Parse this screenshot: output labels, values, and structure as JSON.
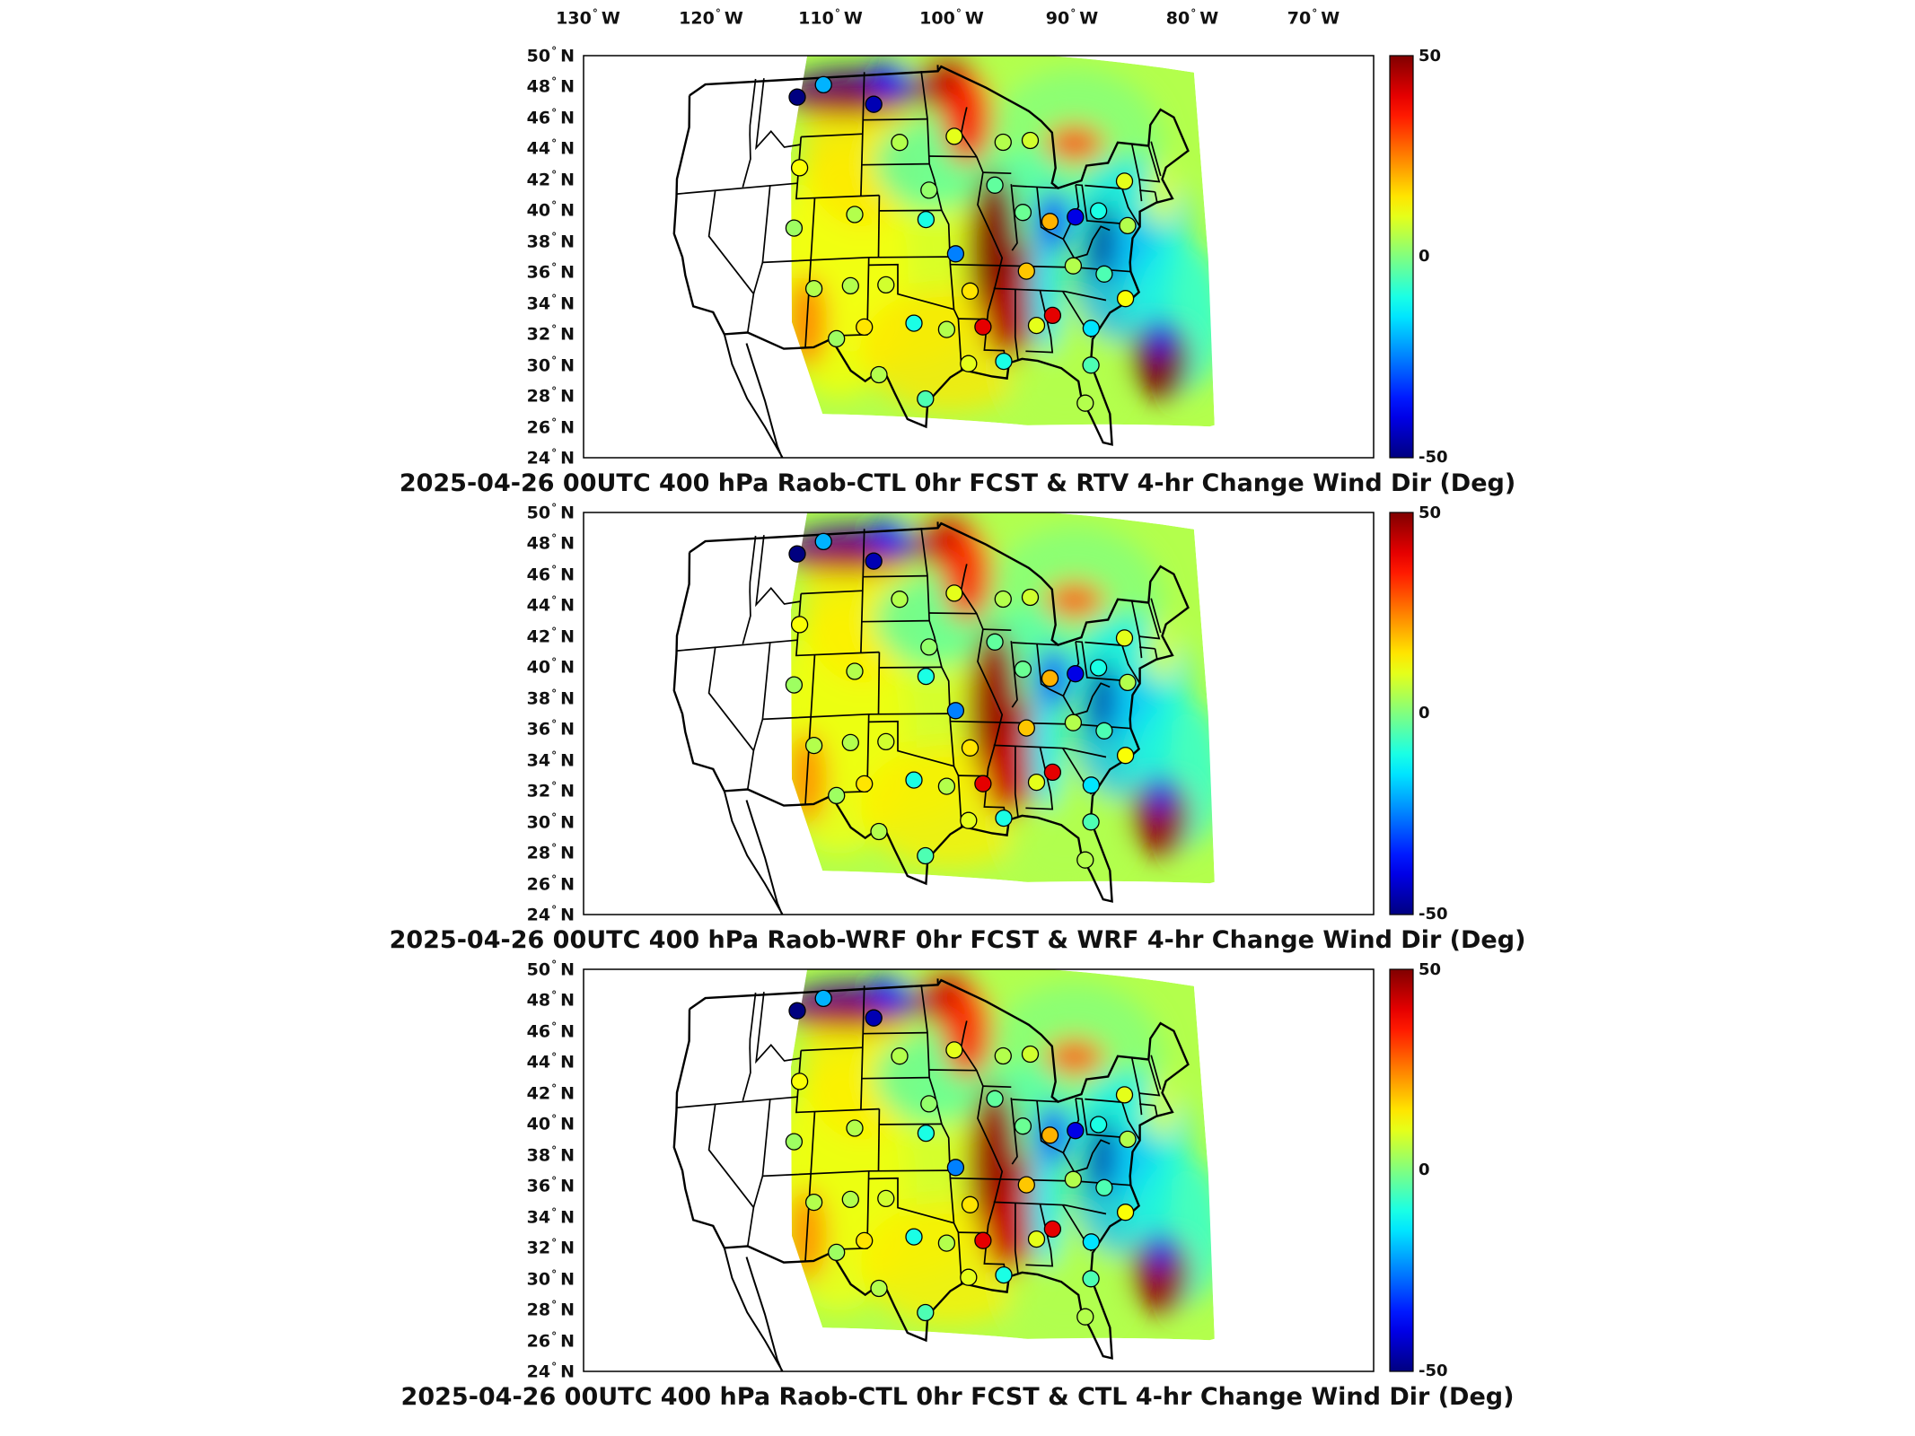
{
  "figure": {
    "longitude_labels": [
      {
        "deg": "130",
        "hemi": "W"
      },
      {
        "deg": "120",
        "hemi": "W"
      },
      {
        "deg": "110",
        "hemi": "W"
      },
      {
        "deg": "100",
        "hemi": "W"
      },
      {
        "deg": "90",
        "hemi": "W"
      },
      {
        "deg": "80",
        "hemi": "W"
      },
      {
        "deg": "70",
        "hemi": "W"
      }
    ],
    "latitude_labels": [
      {
        "deg": "50",
        "hemi": "N"
      },
      {
        "deg": "48",
        "hemi": "N"
      },
      {
        "deg": "46",
        "hemi": "N"
      },
      {
        "deg": "44",
        "hemi": "N"
      },
      {
        "deg": "42",
        "hemi": "N"
      },
      {
        "deg": "40",
        "hemi": "N"
      },
      {
        "deg": "38",
        "hemi": "N"
      },
      {
        "deg": "36",
        "hemi": "N"
      },
      {
        "deg": "34",
        "hemi": "N"
      },
      {
        "deg": "32",
        "hemi": "N"
      },
      {
        "deg": "30",
        "hemi": "N"
      },
      {
        "deg": "28",
        "hemi": "N"
      },
      {
        "deg": "26",
        "hemi": "N"
      },
      {
        "deg": "24",
        "hemi": "N"
      }
    ],
    "colorbar": {
      "colormap": "jet",
      "min": -50,
      "max": 50,
      "tick_labels": [
        "50",
        "0",
        "-50"
      ]
    },
    "panels": [
      {
        "title": "2025-04-26 00UTC 400 hPa Raob-CTL 0hr FCST & RTV 4-hr Change Wind Dir (Deg)"
      },
      {
        "title": "2025-04-26 00UTC 400 hPa Raob-WRF 0hr FCST & WRF 4-hr Change Wind Dir (Deg)"
      },
      {
        "title": "2025-04-26 00UTC 400 hPa Raob-CTL 0hr FCST & CTL 4-hr Change Wind Dir (Deg)"
      }
    ],
    "station_markers": [
      {
        "lon": -111.8,
        "lat": 47.6,
        "value": -50
      },
      {
        "lon": -108.8,
        "lat": 48.3,
        "value": -20
      },
      {
        "lon": -102.8,
        "lat": 46.9,
        "value": -45
      },
      {
        "lon": -99.8,
        "lat": 44.4,
        "value": 5
      },
      {
        "lon": -93.6,
        "lat": 44.8,
        "value": 10
      },
      {
        "lon": -88.1,
        "lat": 44.5,
        "value": 5
      },
      {
        "lon": -85.0,
        "lat": 44.7,
        "value": 8
      },
      {
        "lon": -110.9,
        "lat": 43.0,
        "value": 12
      },
      {
        "lon": -96.6,
        "lat": 41.3,
        "value": 2
      },
      {
        "lon": -89.4,
        "lat": 41.7,
        "value": -3
      },
      {
        "lon": -86.6,
        "lat": 40.0,
        "value": -2
      },
      {
        "lon": -111.0,
        "lat": 39.1,
        "value": 3
      },
      {
        "lon": -104.6,
        "lat": 39.8,
        "value": 5
      },
      {
        "lon": -97.0,
        "lat": 39.4,
        "value": -10
      },
      {
        "lon": -94.0,
        "lat": 37.2,
        "value": -25
      },
      {
        "lon": -83.8,
        "lat": 39.5,
        "value": 20
      },
      {
        "lon": -81.0,
        "lat": 39.9,
        "value": -40
      },
      {
        "lon": -78.4,
        "lat": 40.4,
        "value": -10
      },
      {
        "lon": -75.5,
        "lat": 39.6,
        "value": 5
      },
      {
        "lon": -75.0,
        "lat": 42.5,
        "value": 10
      },
      {
        "lon": -108.5,
        "lat": 35.1,
        "value": 5
      },
      {
        "lon": -104.8,
        "lat": 35.2,
        "value": 5
      },
      {
        "lon": -101.2,
        "lat": 35.2,
        "value": 8
      },
      {
        "lon": -92.7,
        "lat": 34.8,
        "value": 15
      },
      {
        "lon": -86.8,
        "lat": 36.2,
        "value": 18
      },
      {
        "lon": -81.9,
        "lat": 36.7,
        "value": 5
      },
      {
        "lon": -78.8,
        "lat": 36.3,
        "value": -5
      },
      {
        "lon": -77.0,
        "lat": 34.8,
        "value": 12
      },
      {
        "lon": -106.0,
        "lat": 31.8,
        "value": 3
      },
      {
        "lon": -103.3,
        "lat": 32.5,
        "value": 15
      },
      {
        "lon": -98.4,
        "lat": 32.7,
        "value": -10
      },
      {
        "lon": -95.2,
        "lat": 32.3,
        "value": 5
      },
      {
        "lon": -91.6,
        "lat": 32.5,
        "value": 40
      },
      {
        "lon": -86.3,
        "lat": 32.7,
        "value": 10
      },
      {
        "lon": -84.6,
        "lat": 33.4,
        "value": 40
      },
      {
        "lon": -80.9,
        "lat": 32.7,
        "value": -15
      },
      {
        "lon": -101.8,
        "lat": 29.4,
        "value": 5
      },
      {
        "lon": -97.4,
        "lat": 27.8,
        "value": -5
      },
      {
        "lon": -93.2,
        "lat": 30.1,
        "value": 10
      },
      {
        "lon": -89.8,
        "lat": 30.3,
        "value": -10
      },
      {
        "lon": -82.4,
        "lat": 27.8,
        "value": 5
      },
      {
        "lon": -81.4,
        "lat": 30.3,
        "value": -5
      }
    ]
  }
}
